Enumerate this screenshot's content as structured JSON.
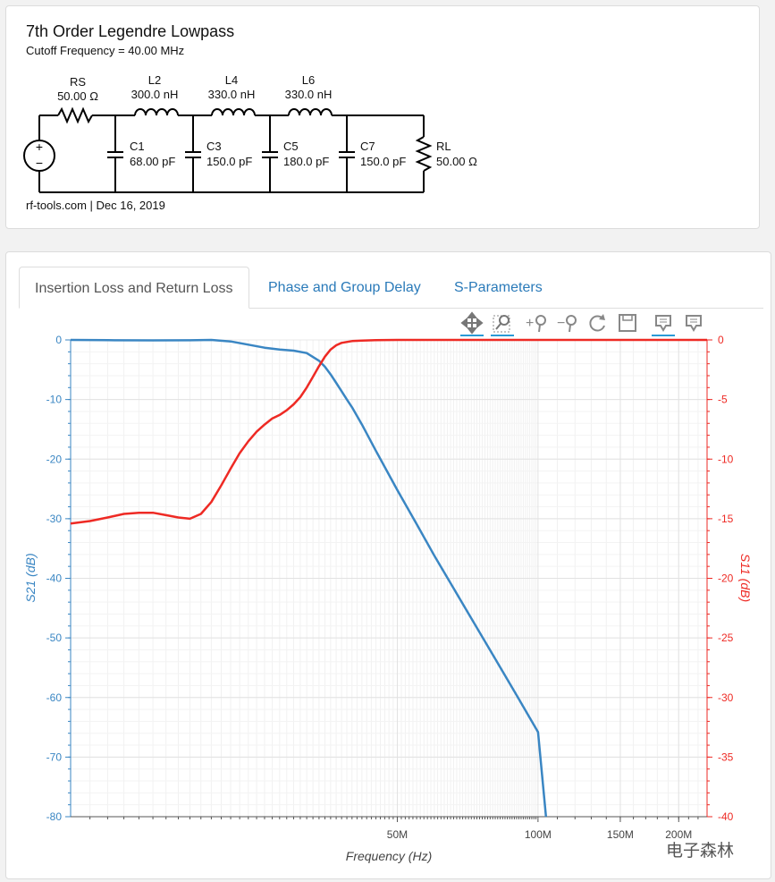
{
  "schematic": {
    "title": "7th Order Legendre Lowpass",
    "subtitle": "Cutoff Frequency = 40.00 MHz",
    "footer": "rf-tools.com | Dec 16, 2019",
    "source_symbol": "+",
    "source_minus": "−",
    "components": [
      {
        "name": "RS",
        "value": "50.00 Ω"
      },
      {
        "name": "L2",
        "value": "300.0 nH"
      },
      {
        "name": "L4",
        "value": "330.0 nH"
      },
      {
        "name": "L6",
        "value": "330.0 nH"
      },
      {
        "name": "C1",
        "value": "68.00 pF"
      },
      {
        "name": "C3",
        "value": "150.0 pF"
      },
      {
        "name": "C5",
        "value": "180.0 pF"
      },
      {
        "name": "C7",
        "value": "150.0 pF"
      },
      {
        "name": "RL",
        "value": "50.00 Ω"
      }
    ]
  },
  "tabs": [
    {
      "label": "Insertion Loss and Return Loss",
      "active": true
    },
    {
      "label": "Phase and Group Delay",
      "active": false
    },
    {
      "label": "S-Parameters",
      "active": false
    }
  ],
  "toolbar": [
    {
      "icon": "pan-icon",
      "active": true
    },
    {
      "icon": "box-zoom-icon",
      "active": true
    },
    {
      "icon": "zoom-in-icon",
      "active": false
    },
    {
      "icon": "zoom-out-icon",
      "active": false
    },
    {
      "icon": "reset-icon",
      "active": false
    },
    {
      "icon": "save-icon",
      "active": false
    },
    {
      "icon": "hover-icon",
      "active": true
    },
    {
      "icon": "hover-icon-2",
      "active": false
    }
  ],
  "watermark": "电子森林",
  "chart_data": {
    "type": "line",
    "xlabel": "Frequency (Hz)",
    "ylabel_left": "S21 (dB)",
    "ylabel_right": "S11 (dB)",
    "x_scale": "log",
    "x_range_mhz": [
      10,
      230
    ],
    "y_left_range": [
      -80,
      0
    ],
    "y_right_range": [
      -40,
      0
    ],
    "x_tick_labels": [
      {
        "value": 50,
        "label": "50M"
      },
      {
        "value": 100,
        "label": "100M"
      },
      {
        "value": 150,
        "label": "150M"
      },
      {
        "value": 200,
        "label": "200M"
      }
    ],
    "y_left_ticks": [
      0,
      -10,
      -20,
      -30,
      -40,
      -50,
      -60,
      -70,
      -80
    ],
    "y_right_ticks": [
      0,
      -5,
      -10,
      -15,
      -20,
      -25,
      -30,
      -35,
      -40
    ],
    "grid": true,
    "colors": {
      "s21": "#3a86c3",
      "s11": "#ee2a24"
    },
    "series": [
      {
        "axis": "left",
        "x_mhz": [
          10,
          12,
          15,
          18,
          20,
          22,
          24,
          26,
          28,
          30,
          32,
          34,
          35,
          36,
          37,
          38,
          39,
          40,
          42,
          45,
          50,
          55,
          60,
          70,
          80,
          90,
          100,
          104
        ],
        "y_db": [
          0,
          -0.05,
          -0.08,
          -0.06,
          0,
          -0.25,
          -0.8,
          -1.3,
          -1.6,
          -1.8,
          -2.2,
          -3.5,
          -4.5,
          -5.8,
          -7.2,
          -8.6,
          -10,
          -11.3,
          -14.2,
          -18.6,
          -25.2,
          -30.9,
          -36.2,
          -45.1,
          -52.8,
          -59.6,
          -65.8,
          -80
        ]
      },
      {
        "axis": "right",
        "x_mhz": [
          10,
          11,
          12,
          13,
          14,
          15,
          16,
          17,
          18,
          19,
          20,
          21,
          22,
          23,
          24,
          25,
          26,
          27,
          28,
          29,
          30,
          31,
          32,
          33,
          34,
          35,
          36,
          37,
          38,
          40,
          42,
          45,
          50,
          60,
          80,
          100,
          150,
          230
        ],
        "y_db": [
          -15.4,
          -15.2,
          -14.9,
          -14.6,
          -14.5,
          -14.5,
          -14.7,
          -14.9,
          -15.0,
          -14.6,
          -13.6,
          -12.2,
          -10.8,
          -9.5,
          -8.5,
          -7.7,
          -7.1,
          -6.6,
          -6.3,
          -5.9,
          -5.4,
          -4.8,
          -4.0,
          -3.1,
          -2.2,
          -1.4,
          -0.8,
          -0.45,
          -0.25,
          -0.1,
          -0.05,
          -0.02,
          0,
          0,
          0,
          0,
          0,
          0
        ]
      }
    ]
  }
}
